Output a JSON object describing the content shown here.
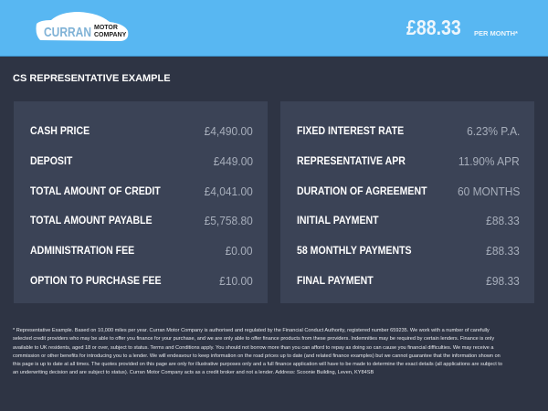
{
  "header": {
    "logo_main": "CURRAN",
    "logo_sub1": "MOTOR",
    "logo_sub2": "COMPANY",
    "price": "£88.33",
    "per_month": "PER MONTH*"
  },
  "title": "CS REPRESENTATIVE EXAMPLE",
  "left": [
    {
      "label": "CASH PRICE",
      "value": "£4,490.00"
    },
    {
      "label": "DEPOSIT",
      "value": "£449.00"
    },
    {
      "label": "TOTAL AMOUNT OF CREDIT",
      "value": "£4,041.00"
    },
    {
      "label": "TOTAL AMOUNT PAYABLE",
      "value": "£5,758.80"
    },
    {
      "label": "ADMINISTRATION FEE",
      "value": "£0.00"
    },
    {
      "label": "OPTION TO PURCHASE FEE",
      "value": "£10.00"
    }
  ],
  "right": [
    {
      "label": "FIXED INTEREST RATE",
      "value": "6.23% P.A."
    },
    {
      "label": "REPRESENTATIVE APR",
      "value": "11.90% APR"
    },
    {
      "label": "DURATION OF AGREEMENT",
      "value": "60 MONTHS"
    },
    {
      "label": "INITIAL PAYMENT",
      "value": "£88.33"
    },
    {
      "label": "58 MONTHLY PAYMENTS",
      "value": "£88.33"
    },
    {
      "label": "FINAL PAYMENT",
      "value": "£98.33"
    }
  ],
  "footnote": "* Representative Example. Based on 10,000 miles per year. Curran Motor Company is authorised and regulated by the Financial Conduct Authority, registered number 659235. We work with a number of carefully selected credit providers who may be able to offer you finance for your purchase, and we are only able to offer finance products from these providers. Indemnities may be required by certain lenders. Finance is only available to UK residents, aged 18 or over, subject to status. Terms and Conditions apply. You should not borrow more than you can afford to repay as doing so can cause you financial difficulties. We may receive a commission or other benefits for introducing you to a lender. We will endeavour to keep information on the road prices up to date (and related finance examples) but we cannot guarantee that the information shown on this page is up to date at all times. The quotes provided on this page are only for illustrative purposes only and a full finance application will have to be made to determine the exact details (all applications are subject to an underwriting decision and are subject to status). Curran Motor Company acts as a credit broker and not a lender. Address: Scoonie Building, Leven, KY84SB"
}
